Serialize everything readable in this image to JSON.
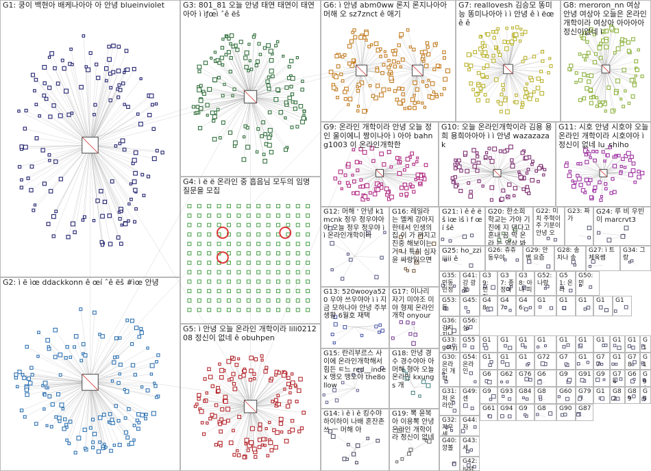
{
  "colors": {
    "G1": "#1f1f6e",
    "G2": "#2a6fb0",
    "G3": "#2f6e3a",
    "G4": "#3f9b3f",
    "G5": "#b2242a",
    "G6": "#c27a1e",
    "G7": "#b9b12a",
    "G8": "#8bb03a",
    "G9": "#b02680",
    "G10": "#7a2a6e",
    "G11": "#9b2ca0",
    "G12": "#4a4a7a",
    "G13": "#3a4aa0",
    "G14": "#3c3c5a",
    "G15": "#5a5a8a",
    "G16": "#6a4a2a",
    "G17": "#6a2a8a",
    "G18": "#3a7a7a",
    "G19": "#5a5a5a",
    "G20": "#4a7a4a",
    "edge": "#9a9a9a",
    "border": "#b8b8b8"
  },
  "groups": [
    {
      "id": "G1",
      "label": "G1: 쿵이 백현아 배케나아아 아 안녕 blueinviolet"
    },
    {
      "id": "G2",
      "label": "G2: ì ë ìœ ddackkonn ê œí ˆê ëš #ìœ 안녕"
    },
    {
      "id": "G3",
      "label": "G3: 801_81 오늘 안녕 태연 태연이 태연아아 ì ìƒœì ˆê ëš"
    },
    {
      "id": "G4",
      "label": "G4: ì ë ë 온라인 중 흡음님 모두의 임명 질문을 모집"
    },
    {
      "id": "G5",
      "label": "G5: ì 안녕 오늘 온라인 개학이라 lili021208 정신이 없네 ê obuhpen"
    },
    {
      "id": "G6",
      "label": "G6: ì 안녕 abm0ww 론지 론지나아아 머해 오 sz7znct ê 애기"
    },
    {
      "id": "G7",
      "label": "G7: reallovesh 김승모 똥미 능 똥미나아아 ì ì 안녕 ê ì ëœê ê"
    },
    {
      "id": "G8",
      "label": "G8: meroron_nn 여상 안녕 여상아 오늘은 온라인 개학이라 여상아 아아아아 정신이없네 ì"
    },
    {
      "id": "G9",
      "label": "G9: 온라인 개학이라 안녕 오늘 정인 울이에니 짱이나아 ì 아아 bahng1003 이 온라인개학한"
    },
    {
      "id": "G10",
      "label": "G10: 오늘 온라인개학이라 김용 용희 용희아아아 ì ì 안녕 wazazazak"
    },
    {
      "id": "G11",
      "label": "G11: 시호 안녕 시호야 오늘 온라인 개학이라 시호야아 ì 정신이 없네 lu_shiho"
    },
    {
      "id": "G12",
      "label": "G12: 머해 ' 안녕 k1mcnk 정우 정우야아 아 오늘 정우 정우야 ì ì 온라인개학이라"
    },
    {
      "id": "G13",
      "label": "G13: 520wooya520 우야 쓰우야아 ì ì 지금 모하나아 안녕 주부 생활 6월호 재택"
    },
    {
      "id": "G14",
      "label": "G14: ì ê ì ê 킹수야 하이하이 나배 혼잔존쓰 ㅡ 머해 아"
    },
    {
      "id": "G15",
      "label": "G15: 란리부르스 사이에 온라인개학해서 힘든 ㅌ느 red__index 맹오 맹오야 the8ollow"
    },
    {
      "id": "G16",
      "label": "G16: 레일라 는 멜케 강아지 한테서 인생의 집 이 가 꺄지고 진중 해보이는거 나 특히 심자윤 싸랑있으면"
    },
    {
      "id": "G17",
      "label": "G17: 이나리 자기 미야조 미야 형제 온라인 개학 onyour"
    },
    {
      "id": "G18",
      "label": "G18: 안녕 경수 경수야아 아 머해 형아 오늘 온라인 kxungs 개"
    },
    {
      "id": "G19",
      "label": "G19: 뽁 윤복 아 이용뽁 안녕 온라인 개학이라 정신이 없네"
    },
    {
      "id": "G20",
      "label": "G20: 한소희 학교는 가야 기진에 지 댄다고 혼내 곰 막 온라 는 영상 봐 안에서 본"
    },
    {
      "id": "G21",
      "label": "G21: ì ê ê ëš ìœ ìš ì f œí šê"
    },
    {
      "id": "G22",
      "label": "G22: 미치 주혁이 주 기분이 안녕 오"
    },
    {
      "id": "G23",
      "label": "G23: 짜가"
    },
    {
      "id": "G24",
      "label": "G24: 루 비 우빈 이 marcrvt3"
    },
    {
      "id": "G25",
      "label": "G25: ho_zziiiiii ê"
    },
    {
      "id": "G26",
      "label": "G26: 쥬쥬 동우야"
    },
    {
      "id": "G27",
      "label": "G27: ì 트 체육쌤"
    },
    {
      "id": "G28",
      "label": "G28: 송 차나 송"
    },
    {
      "id": "G29",
      "label": "G29: 안 병 요즘"
    },
    {
      "id": "G30",
      "label": "G30: 온라인 개학"
    },
    {
      "id": "G31",
      "label": "G31: 저 온 라인"
    },
    {
      "id": "G32",
      "label": "G32: 지우 세"
    },
    {
      "id": "G33",
      "label": "G33: gotyj"
    },
    {
      "id": "G34",
      "label": "G34: 그랑"
    },
    {
      "id": "G35",
      "label": "G35: 민동 민정"
    },
    {
      "id": "G36",
      "label": "G36: 김지 지난"
    },
    {
      "id": "G37",
      "label": "G37: 종 정아"
    },
    {
      "id": "G38",
      "label": "G38: 아 나 피"
    },
    {
      "id": "G39",
      "label": "G39: 민 철"
    },
    {
      "id": "G40",
      "label": "G40: 깡볼"
    },
    {
      "id": "G41",
      "label": "G41: 강 광 정"
    },
    {
      "id": "G42",
      "label": "G42: just"
    },
    {
      "id": "G43",
      "label": "G43: 세"
    },
    {
      "id": "G44",
      "label": "G44: 자"
    },
    {
      "id": "G45",
      "label": "G45:"
    },
    {
      "id": "G46",
      "label": "G46:"
    },
    {
      "id": "G47",
      "label": "G47:"
    },
    {
      "id": "G48",
      "label": "G48:"
    },
    {
      "id": "G49",
      "label": "G49: 센"
    },
    {
      "id": "G50",
      "label": "G50: 민"
    },
    {
      "id": "G51",
      "label": "G51: 온라"
    },
    {
      "id": "G52",
      "label": "G52: 나랑"
    },
    {
      "id": "G53",
      "label": "G53: 동"
    },
    {
      "id": "G54",
      "label": "G54: 온라인"
    },
    {
      "id": "G55",
      "label": "G55"
    },
    {
      "id": "G56",
      "label": "G56: 심"
    },
    {
      "id": "m1",
      "label": "G1"
    },
    {
      "id": "m2",
      "label": "G1"
    },
    {
      "id": "m3",
      "label": "G1"
    },
    {
      "id": "m4",
      "label": "G1"
    },
    {
      "id": "m5",
      "label": "G1"
    },
    {
      "id": "m6",
      "label": "G1"
    },
    {
      "id": "m7",
      "label": "G1"
    },
    {
      "id": "m8",
      "label": "G1"
    },
    {
      "id": "m9",
      "label": "G1"
    },
    {
      "id": "m10",
      "label": "G1"
    },
    {
      "id": "m11",
      "label": "G1"
    },
    {
      "id": "m12",
      "label": "G1"
    },
    {
      "id": "m13",
      "label": "G1"
    },
    {
      "id": "m14",
      "label": "G1"
    },
    {
      "id": "m15",
      "label": "G1"
    },
    {
      "id": "m16",
      "label": "G1"
    },
    {
      "id": "m17",
      "label": "G1"
    },
    {
      "id": "m18",
      "label": "G1"
    },
    {
      "id": "m19",
      "label": "G72"
    },
    {
      "id": "m20",
      "label": "G7"
    },
    {
      "id": "m21",
      "label": "G1"
    },
    {
      "id": "m22",
      "label": "G77"
    },
    {
      "id": "m23",
      "label": "G1"
    },
    {
      "id": "m24",
      "label": "G78"
    },
    {
      "id": "m25",
      "label": "G1"
    },
    {
      "id": "m26",
      "label": "G6"
    },
    {
      "id": "m27",
      "label": "G62"
    },
    {
      "id": "m28",
      "label": "G76"
    },
    {
      "id": "m29",
      "label": "G6"
    },
    {
      "id": "m30",
      "label": "G9"
    },
    {
      "id": "m31",
      "label": "G91"
    },
    {
      "id": "m32",
      "label": "G9"
    },
    {
      "id": "m33",
      "label": "G74"
    },
    {
      "id": "m34",
      "label": "G6"
    },
    {
      "id": "m35",
      "label": "G96"
    },
    {
      "id": "m36",
      "label": "G9"
    },
    {
      "id": "m37",
      "label": "G93"
    },
    {
      "id": "m38",
      "label": "G84"
    },
    {
      "id": "m39",
      "label": "G8"
    },
    {
      "id": "m40",
      "label": "G60"
    },
    {
      "id": "m41",
      "label": "G79"
    },
    {
      "id": "m42",
      "label": "G1"
    },
    {
      "id": "m43",
      "label": "G82"
    },
    {
      "id": "m44",
      "label": "G89"
    },
    {
      "id": "m45",
      "label": "G6"
    },
    {
      "id": "m46",
      "label": "G61"
    },
    {
      "id": "m47",
      "label": "G94"
    },
    {
      "id": "m48",
      "label": "G9"
    },
    {
      "id": "m49",
      "label": "G8"
    },
    {
      "id": "m50",
      "label": "G90"
    },
    {
      "id": "m51",
      "label": "G87"
    }
  ]
}
